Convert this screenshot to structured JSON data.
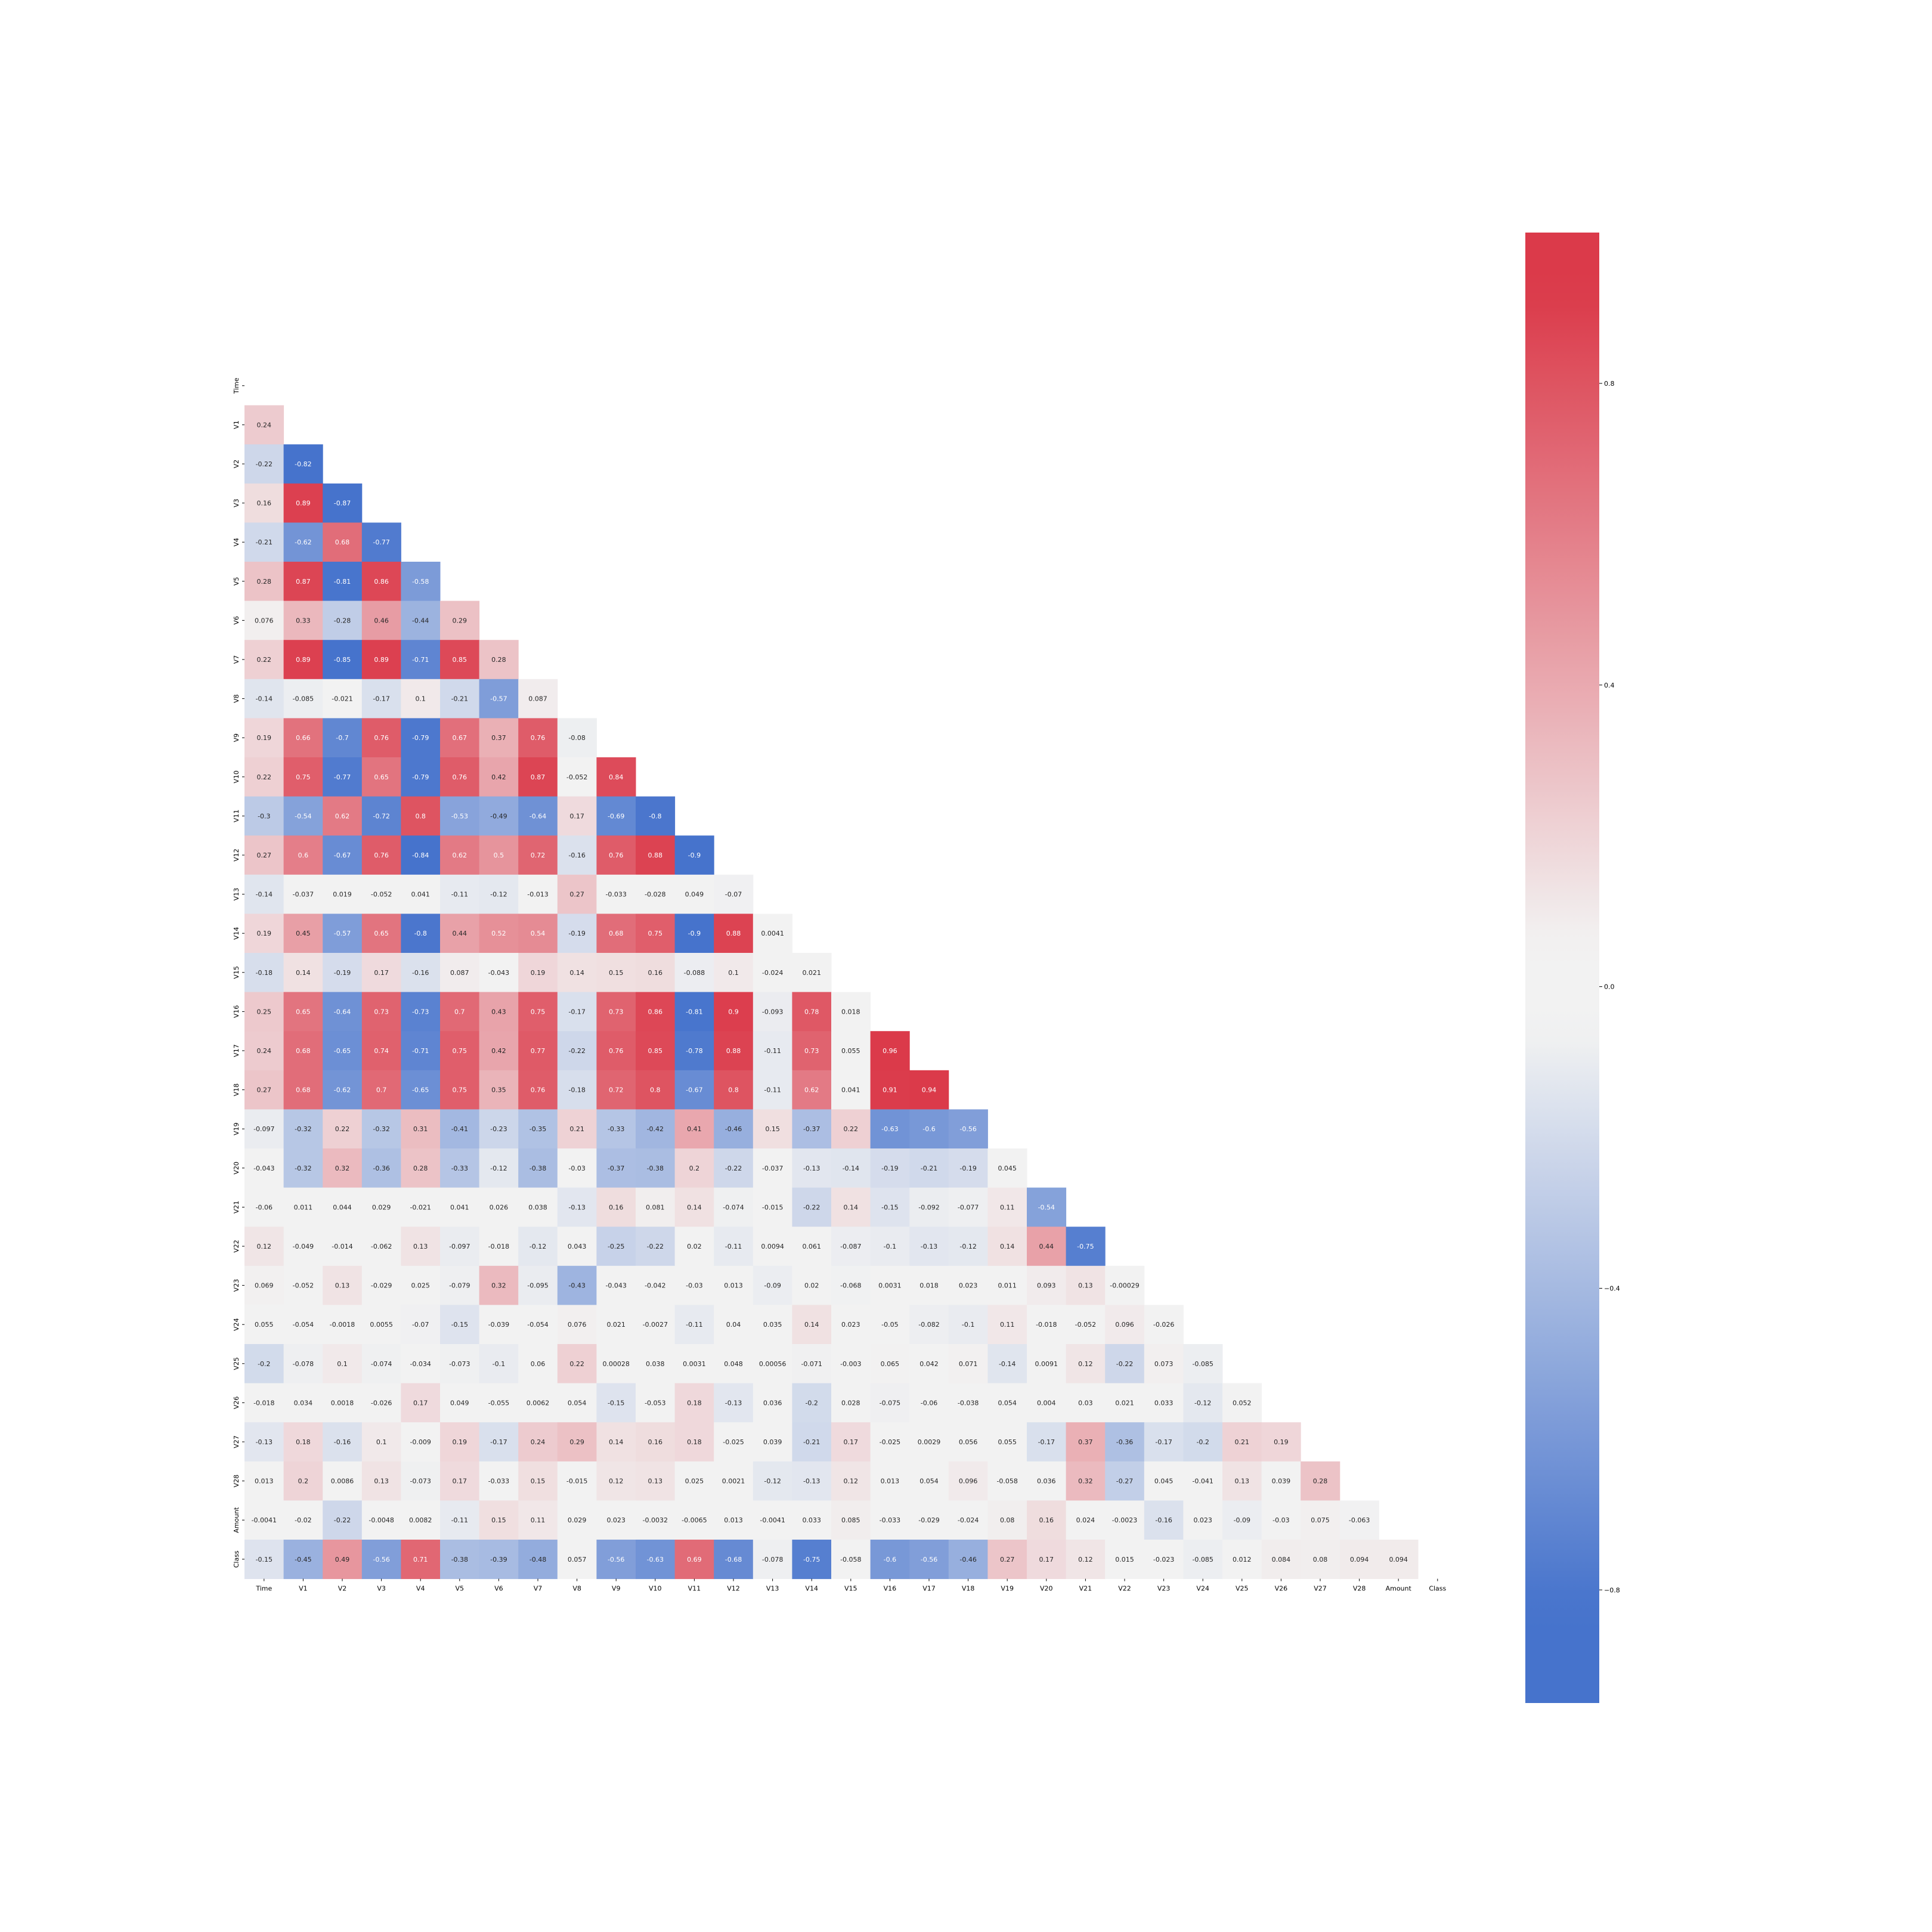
{
  "chart_data": {
    "type": "heatmap",
    "title": "",
    "xlabel": "",
    "ylabel": "",
    "mask": "upper-triangle-including-diagonal",
    "variables": [
      "Time",
      "V1",
      "V2",
      "V3",
      "V4",
      "V5",
      "V6",
      "V7",
      "V8",
      "V9",
      "V10",
      "V11",
      "V12",
      "V13",
      "V14",
      "V15",
      "V16",
      "V17",
      "V18",
      "V19",
      "V20",
      "V21",
      "V22",
      "V23",
      "V24",
      "V25",
      "V26",
      "V27",
      "V28",
      "Amount",
      "Class"
    ],
    "value_labels": [
      [],
      [
        "0.24"
      ],
      [
        "-0.22",
        "-0.82"
      ],
      [
        "0.16",
        "0.89",
        "-0.87"
      ],
      [
        "-0.21",
        "-0.62",
        "0.68",
        "-0.77"
      ],
      [
        "0.28",
        "0.87",
        "-0.81",
        "0.86",
        "-0.58"
      ],
      [
        "0.076",
        "0.33",
        "-0.28",
        "0.46",
        "-0.44",
        "0.29"
      ],
      [
        "0.22",
        "0.89",
        "-0.85",
        "0.89",
        "-0.71",
        "0.85",
        "0.28"
      ],
      [
        "-0.14",
        "-0.085",
        "-0.021",
        "-0.17",
        "0.1",
        "-0.21",
        "-0.57",
        "0.087"
      ],
      [
        "0.19",
        "0.66",
        "-0.7",
        "0.76",
        "-0.79",
        "0.67",
        "0.37",
        "0.76",
        "-0.08"
      ],
      [
        "0.22",
        "0.75",
        "-0.77",
        "0.65",
        "-0.79",
        "0.76",
        "0.42",
        "0.87",
        "-0.052",
        "0.84"
      ],
      [
        "-0.3",
        "-0.54",
        "0.62",
        "-0.72",
        "0.8",
        "-0.53",
        "-0.49",
        "-0.64",
        "0.17",
        "-0.69",
        "-0.8"
      ],
      [
        "0.27",
        "0.6",
        "-0.67",
        "0.76",
        "-0.84",
        "0.62",
        "0.5",
        "0.72",
        "-0.16",
        "0.76",
        "0.88",
        "-0.9"
      ],
      [
        "-0.14",
        "-0.037",
        "0.019",
        "-0.052",
        "0.041",
        "-0.11",
        "-0.12",
        "-0.013",
        "0.27",
        "-0.033",
        "-0.028",
        "0.049",
        "-0.07"
      ],
      [
        "0.19",
        "0.45",
        "-0.57",
        "0.65",
        "-0.8",
        "0.44",
        "0.52",
        "0.54",
        "-0.19",
        "0.68",
        "0.75",
        "-0.9",
        "0.88",
        "0.0041"
      ],
      [
        "-0.18",
        "0.14",
        "-0.19",
        "0.17",
        "-0.16",
        "0.087",
        "-0.043",
        "0.19",
        "0.14",
        "0.15",
        "0.16",
        "-0.088",
        "0.1",
        "-0.024",
        "0.021"
      ],
      [
        "0.25",
        "0.65",
        "-0.64",
        "0.73",
        "-0.73",
        "0.7",
        "0.43",
        "0.75",
        "-0.17",
        "0.73",
        "0.86",
        "-0.81",
        "0.9",
        "-0.093",
        "0.78",
        "0.018"
      ],
      [
        "0.24",
        "0.68",
        "-0.65",
        "0.74",
        "-0.71",
        "0.75",
        "0.42",
        "0.77",
        "-0.22",
        "0.76",
        "0.85",
        "-0.78",
        "0.88",
        "-0.11",
        "0.73",
        "0.055",
        "0.96"
      ],
      [
        "0.27",
        "0.68",
        "-0.62",
        "0.7",
        "-0.65",
        "0.75",
        "0.35",
        "0.76",
        "-0.18",
        "0.72",
        "0.8",
        "-0.67",
        "0.8",
        "-0.11",
        "0.62",
        "0.041",
        "0.91",
        "0.94"
      ],
      [
        "-0.097",
        "-0.32",
        "0.22",
        "-0.32",
        "0.31",
        "-0.41",
        "-0.23",
        "-0.35",
        "0.21",
        "-0.33",
        "-0.42",
        "0.41",
        "-0.46",
        "0.15",
        "-0.37",
        "0.22",
        "-0.63",
        "-0.6",
        "-0.56"
      ],
      [
        "-0.043",
        "-0.32",
        "0.32",
        "-0.36",
        "0.28",
        "-0.33",
        "-0.12",
        "-0.38",
        "-0.03",
        "-0.37",
        "-0.38",
        "0.2",
        "-0.22",
        "-0.037",
        "-0.13",
        "-0.14",
        "-0.19",
        "-0.21",
        "-0.19",
        "0.045"
      ],
      [
        "-0.06",
        "0.011",
        "0.044",
        "0.029",
        "-0.021",
        "0.041",
        "0.026",
        "0.038",
        "-0.13",
        "0.16",
        "0.081",
        "0.14",
        "-0.074",
        "-0.015",
        "-0.22",
        "0.14",
        "-0.15",
        "-0.092",
        "-0.077",
        "0.11",
        "-0.54"
      ],
      [
        "0.12",
        "-0.049",
        "-0.014",
        "-0.062",
        "0.13",
        "-0.097",
        "-0.018",
        "-0.12",
        "0.043",
        "-0.25",
        "-0.22",
        "0.02",
        "-0.11",
        "0.0094",
        "0.061",
        "-0.087",
        "-0.1",
        "-0.13",
        "-0.12",
        "0.14",
        "0.44",
        "-0.75"
      ],
      [
        "0.069",
        "-0.052",
        "0.13",
        "-0.029",
        "0.025",
        "-0.079",
        "0.32",
        "-0.095",
        "-0.43",
        "-0.043",
        "-0.042",
        "-0.03",
        "0.013",
        "-0.09",
        "0.02",
        "-0.068",
        "0.0031",
        "0.018",
        "0.023",
        "0.011",
        "0.093",
        "0.13",
        "-0.00029"
      ],
      [
        "0.055",
        "-0.054",
        "-0.0018",
        "0.0055",
        "-0.07",
        "-0.15",
        "-0.039",
        "-0.054",
        "0.076",
        "0.021",
        "-0.0027",
        "-0.11",
        "0.04",
        "0.035",
        "0.14",
        "0.023",
        "-0.05",
        "-0.082",
        "-0.1",
        "0.11",
        "-0.018",
        "-0.052",
        "0.096",
        "-0.026"
      ],
      [
        "-0.2",
        "-0.078",
        "0.1",
        "-0.074",
        "-0.034",
        "-0.073",
        "-0.1",
        "0.06",
        "0.22",
        "0.00028",
        "0.038",
        "0.0031",
        "0.048",
        "0.00056",
        "-0.071",
        "-0.003",
        "0.065",
        "0.042",
        "0.071",
        "-0.14",
        "0.0091",
        "0.12",
        "-0.22",
        "0.073",
        "-0.085"
      ],
      [
        "-0.018",
        "0.034",
        "0.0018",
        "-0.026",
        "0.17",
        "0.049",
        "-0.055",
        "0.0062",
        "0.054",
        "-0.15",
        "-0.053",
        "0.18",
        "-0.13",
        "0.036",
        "-0.2",
        "0.028",
        "-0.075",
        "-0.06",
        "-0.038",
        "0.054",
        "0.004",
        "0.03",
        "0.021",
        "0.033",
        "-0.12",
        "0.052"
      ],
      [
        "-0.13",
        "0.18",
        "-0.16",
        "0.1",
        "-0.009",
        "0.19",
        "-0.17",
        "0.24",
        "0.29",
        "0.14",
        "0.16",
        "0.18",
        "-0.025",
        "0.039",
        "-0.21",
        "0.17",
        "-0.025",
        "0.0029",
        "0.056",
        "0.055",
        "-0.17",
        "0.37",
        "-0.36",
        "-0.17",
        "-0.2",
        "0.21",
        "0.19"
      ],
      [
        "0.013",
        "0.2",
        "0.0086",
        "0.13",
        "-0.073",
        "0.17",
        "-0.033",
        "0.15",
        "-0.015",
        "0.12",
        "0.13",
        "0.025",
        "0.0021",
        "-0.12",
        "-0.13",
        "0.12",
        "0.013",
        "0.054",
        "0.096",
        "-0.058",
        "0.036",
        "0.32",
        "-0.27",
        "0.045",
        "-0.041",
        "0.13",
        "0.039",
        "0.28"
      ],
      [
        "-0.0041",
        "-0.02",
        "-0.22",
        "-0.0048",
        "0.0082",
        "-0.11",
        "0.15",
        "0.11",
        "0.029",
        "0.023",
        "-0.0032",
        "-0.0065",
        "0.013",
        "-0.0041",
        "0.033",
        "0.085",
        "-0.033",
        "-0.029",
        "-0.024",
        "0.08",
        "0.16",
        "0.024",
        "-0.0023",
        "-0.16",
        "0.023",
        "-0.09",
        "-0.03",
        "0.075",
        "-0.063"
      ],
      [
        "-0.15",
        "-0.45",
        "0.49",
        "-0.56",
        "0.71",
        "-0.38",
        "-0.39",
        "-0.48",
        "0.057",
        "-0.56",
        "-0.63",
        "0.69",
        "-0.68",
        "-0.078",
        "-0.75",
        "-0.058",
        "-0.6",
        "-0.56",
        "-0.46",
        "0.27",
        "0.17",
        "0.12",
        "0.015",
        "-0.023",
        "-0.085",
        "0.012",
        "0.084",
        "0.08",
        "0.094",
        "0.094"
      ]
    ],
    "colorbar": {
      "vmin": -0.95,
      "vmax": 1.0,
      "ticks": [
        0.8,
        0.4,
        0.0,
        -0.4,
        -0.8
      ],
      "tick_labels": [
        "0.8",
        "0.4",
        "0.0",
        "−0.4",
        "−0.8"
      ]
    },
    "colors": {
      "negative": "#4673cc",
      "neutral": "#f2f2f2",
      "positive": "#db3a4a",
      "text_dark": "#262626",
      "text_light": "#ffffff"
    }
  }
}
